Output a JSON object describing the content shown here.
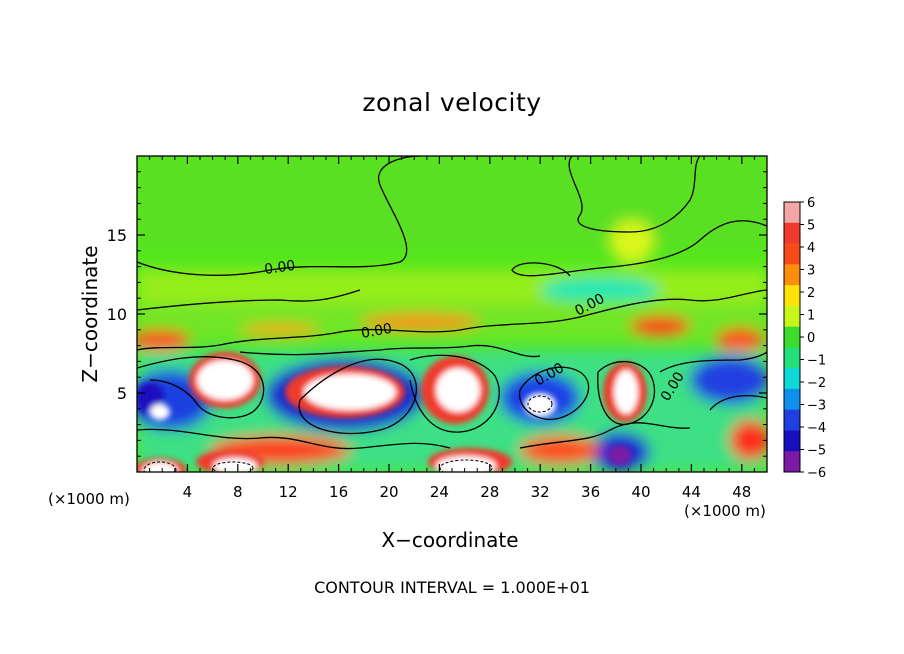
{
  "chart_data": {
    "type": "heatmap",
    "title": "zonal velocity",
    "xlabel": "X−coordinate",
    "ylabel": "Z−coordinate",
    "x_unit_left": "(×1000 m)",
    "x_unit_right": "(×1000 m)",
    "xlim": [
      0,
      50
    ],
    "ylim": [
      0,
      20
    ],
    "x_ticks": [
      4,
      8,
      12,
      16,
      20,
      24,
      28,
      32,
      36,
      40,
      44,
      48
    ],
    "y_ticks": [
      5,
      10,
      15
    ],
    "colorbar": {
      "ticks": [
        "6",
        "5",
        "4",
        "3",
        "2",
        "1",
        "0",
        "−1",
        "−2",
        "−3",
        "−4",
        "−5",
        "−6"
      ],
      "colors": [
        "#f4a6a6",
        "#ef3b2c",
        "#fb4a1a",
        "#fd8d0c",
        "#fde30a",
        "#c8f51a",
        "#3cdc2a",
        "#23e07a",
        "#10d8d8",
        "#1090ee",
        "#1f3fe0",
        "#1a0fbf",
        "#7a1aa6"
      ]
    },
    "contour_labels": [
      "0.00",
      "0.00",
      "0.00",
      "0.00",
      "0.00"
    ],
    "footer": "CONTOUR INTERVAL = 1.000E+01"
  }
}
